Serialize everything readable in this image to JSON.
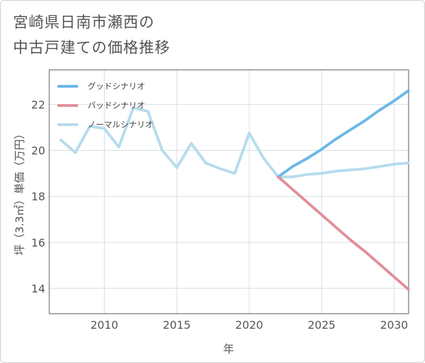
{
  "title": {
    "line1": "宮崎県日南市瀬西の",
    "line2": "中古戸建ての価格推移"
  },
  "chart_data": {
    "type": "line",
    "xlabel": "年",
    "ylabel": "坪（3.3㎡）単価（万円）",
    "xlim": [
      2006.2,
      2031
    ],
    "ylim": [
      12.9,
      23.5
    ],
    "x_ticks": [
      2010,
      2015,
      2020,
      2025,
      2030
    ],
    "y_ticks": [
      14,
      16,
      18,
      20,
      22
    ],
    "grid": true,
    "legend_position": "top-left",
    "series": [
      {
        "name": "グッドシナリオ",
        "color": "#6cb8e8",
        "x": [
          2022,
          2023,
          2024,
          2025,
          2026,
          2027,
          2028,
          2029,
          2030,
          2031
        ],
        "y": [
          18.85,
          19.3,
          19.65,
          20.05,
          20.5,
          20.9,
          21.3,
          21.75,
          22.15,
          22.6
        ]
      },
      {
        "name": "バッドシナリオ",
        "color": "#e0909a",
        "x": [
          2022,
          2023,
          2024,
          2025,
          2026,
          2027,
          2028,
          2029,
          2030,
          2031
        ],
        "y": [
          18.85,
          18.3,
          17.75,
          17.2,
          16.65,
          16.1,
          15.6,
          15.05,
          14.5,
          13.95
        ]
      },
      {
        "name": "ノーマルシナリオ",
        "color": "#b6dced",
        "x": [
          2007,
          2008,
          2009,
          2010,
          2011,
          2012,
          2013,
          2014,
          2015,
          2016,
          2017,
          2018,
          2019,
          2020,
          2021,
          2022,
          2023,
          2024,
          2025,
          2026,
          2027,
          2028,
          2029,
          2030,
          2031
        ],
        "y": [
          20.45,
          19.9,
          21.05,
          20.95,
          20.15,
          21.85,
          21.7,
          20.0,
          19.25,
          20.3,
          19.45,
          19.2,
          19.0,
          20.75,
          19.65,
          18.85,
          18.85,
          18.95,
          19.0,
          19.1,
          19.15,
          19.2,
          19.3,
          19.4,
          19.45
        ]
      }
    ]
  }
}
